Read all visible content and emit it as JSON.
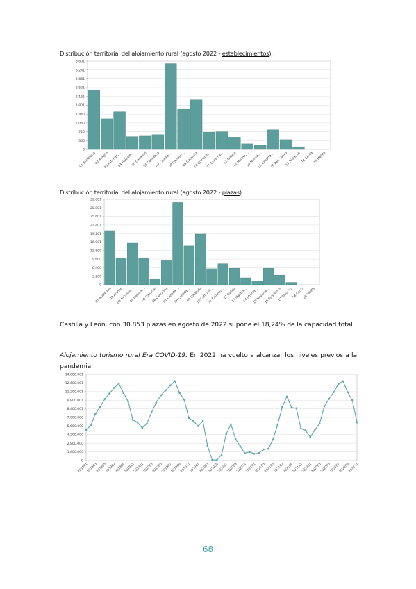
{
  "document": {
    "caption_1": {
      "before": "Distribución territorial del alojamiento rural (agosto 2022 - ",
      "link": "establecimientos",
      "after": "):"
    },
    "caption_2": {
      "before": "Distribución territorial del alojamiento rural (agosto 2022 - ",
      "link": "plazas",
      "after": "):"
    },
    "paragraph_1": "Castilla y León, con 30.853 plazas en agosto de 2022 supone el 18,24% de la capacidad total.",
    "paragraph_2": {
      "italic": "Alojamiento turismo rural Era COVID-19.",
      "text": " En 2022 ha vuelto a alcanzar los niveles previos a la pandemia."
    },
    "page_number": "68"
  },
  "chart_data": [
    {
      "type": "bar",
      "color": "#5b9e9b",
      "grid": true,
      "categories": [
        "01 Andalucía",
        "02 Aragón",
        "03 Asturias,...",
        "04 Baleare...",
        "05 Canarias",
        "06 Cantabria",
        "07 Castilla ...",
        "08 Castilla-...",
        "09 Cataluña",
        "10 Comunit...",
        "11 Extrema...",
        "12 Galicia",
        "13 Madrid,...",
        "14 Murcia,...",
        "15 Navarra,...",
        "16 País Vasco",
        "17 Rioja, La",
        "18 Ceuta",
        "19 Melilla"
      ],
      "values": [
        2400,
        1250,
        1540,
        520,
        540,
        600,
        3500,
        1640,
        2020,
        700,
        720,
        500,
        230,
        160,
        800,
        400,
        110,
        0,
        0
      ],
      "ylim": [
        0,
        3601
      ],
      "yticks": [
        0,
        360,
        720,
        {
          "value": 1080,
          "label": "1.080"
        },
        {
          "value": 1440,
          "label": "1.440"
        },
        {
          "value": 1801,
          "label": "1.801"
        },
        {
          "value": 2161,
          "label": "2.161"
        },
        {
          "value": 2521,
          "label": "2.521"
        },
        {
          "value": 2881,
          "label": "2.881"
        },
        {
          "value": 3241,
          "label": "3.241"
        },
        {
          "value": 3601,
          "label": "3.601"
        }
      ]
    },
    {
      "type": "bar",
      "color": "#5b9e9b",
      "grid": true,
      "categories": [
        "01 Andalucía",
        "02 Aragón",
        "03 Asturias,...",
        "04 Baleare...",
        "05 Canarias",
        "06 Cantabria",
        "07 Castilla ...",
        "08 Castilla-...",
        "09 Cataluña",
        "10 Comunit...",
        "11 Extrema...",
        "12 Galicia",
        "13 Madrid,...",
        "14 Murcia,...",
        "15 Navarra,...",
        "16 País Vasco",
        "17 Rioja, La",
        "18 Ceuta",
        "19 Melilla"
      ],
      "values": [
        20300,
        9800,
        15600,
        9800,
        2300,
        9000,
        30853,
        14600,
        19000,
        6000,
        7900,
        6200,
        2600,
        1500,
        6200,
        3600,
        900,
        0,
        0
      ],
      "ylim": [
        0,
        32001
      ],
      "yticks": [
        0,
        {
          "value": 3200,
          "label": "3.200"
        },
        {
          "value": 6400,
          "label": "6.400"
        },
        {
          "value": 9600,
          "label": "9.600"
        },
        {
          "value": 12800,
          "label": "12.800"
        },
        {
          "value": 16001,
          "label": "16.001"
        },
        {
          "value": 19201,
          "label": "19.201"
        },
        {
          "value": 22401,
          "label": "22.401"
        },
        {
          "value": 25601,
          "label": "25.601"
        },
        {
          "value": 28801,
          "label": "28.801"
        },
        {
          "value": 32001,
          "label": "32.001"
        }
      ]
    },
    {
      "type": "line",
      "color": "#5aa5a8",
      "grid": true,
      "categories": [
        "201801",
        null,
        "201803",
        null,
        "201805",
        null,
        "201807",
        null,
        "201809",
        null,
        "201811",
        null,
        "201901",
        null,
        "201903",
        null,
        "201905",
        null,
        "201907",
        null,
        "201909",
        null,
        "201911",
        null,
        "202001",
        null,
        "202003",
        null,
        "202005",
        null,
        "202007",
        null,
        "202009",
        null,
        "202011",
        null,
        "202101",
        null,
        "202103",
        null,
        "202105",
        null,
        "202107",
        null,
        "202109",
        null,
        "202111",
        null,
        "202201",
        null,
        "202203",
        null,
        "202205",
        null,
        "202207",
        null,
        "202209",
        null,
        "202211"
      ],
      "values": [
        5000000,
        5700000,
        7600000,
        8700000,
        10000000,
        10900000,
        11800000,
        12500000,
        11000000,
        9600000,
        6600000,
        6200000,
        5300000,
        6000000,
        7800000,
        9400000,
        10600000,
        11400000,
        12200000,
        12900000,
        11000000,
        9900000,
        6900000,
        6400000,
        5600000,
        6400000,
        2400000,
        100000,
        100000,
        900000,
        4300000,
        5900000,
        3500000,
        2300000,
        1200000,
        1400000,
        1100000,
        1200000,
        1800000,
        1900000,
        3400000,
        5800000,
        8700000,
        10400000,
        8600000,
        8500000,
        5200000,
        4900000,
        3800000,
        5000000,
        6000000,
        8800000,
        10000000,
        11100000,
        12400000,
        12900000,
        11100000,
        9800000,
        6200000
      ],
      "ylim": [
        0,
        14000001
      ],
      "yticks": [
        0,
        {
          "value": 1400000,
          "label": "1.400.000"
        },
        {
          "value": 2800000,
          "label": "2.800.000"
        },
        {
          "value": 4200000,
          "label": "4.200.000"
        },
        {
          "value": 5600000,
          "label": "5.600.000"
        },
        {
          "value": 7000000,
          "label": "7.000.000"
        },
        {
          "value": 8400001,
          "label": "8.400.001"
        },
        {
          "value": 9800001,
          "label": "9.800.001"
        },
        {
          "value": 11200001,
          "label": "11.200.001"
        },
        {
          "value": 12600001,
          "label": "12.600.001"
        },
        {
          "value": 14000001,
          "label": "14.000.001"
        }
      ]
    }
  ]
}
